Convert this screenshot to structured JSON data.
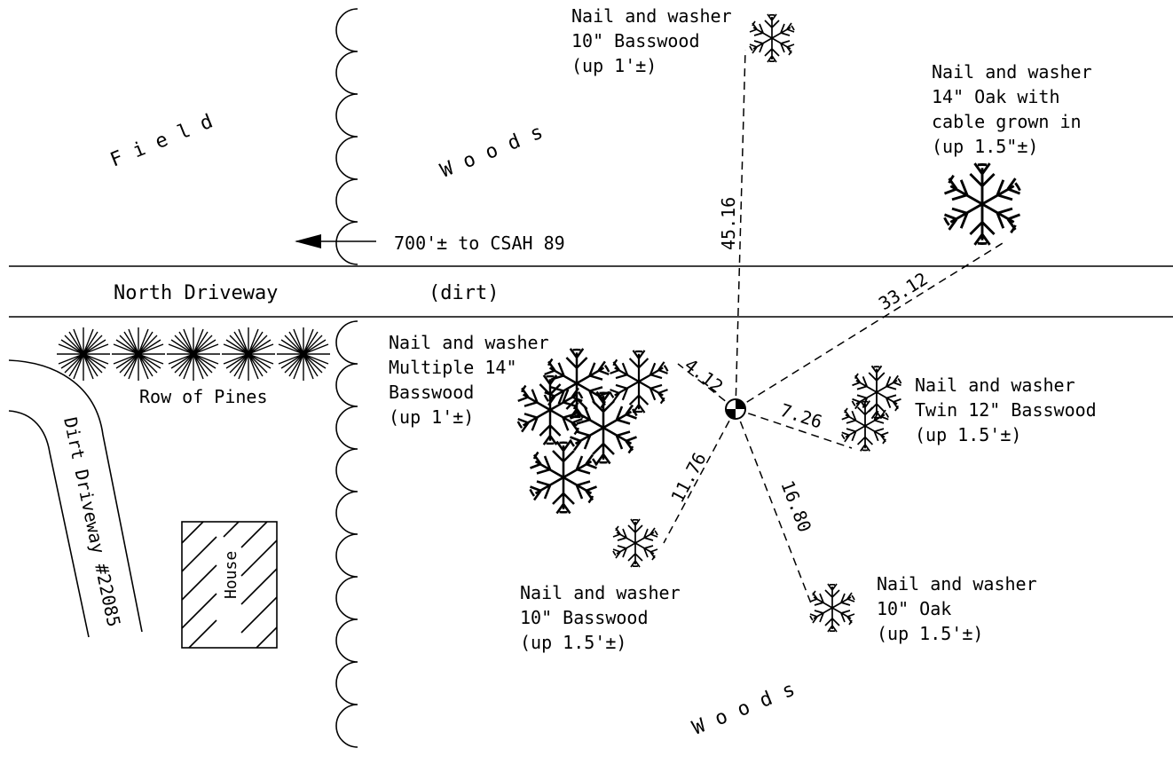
{
  "labels": {
    "field": "Field",
    "woods_top": "Woods",
    "woods_bottom": "Woods",
    "north_driveway": "North Driveway",
    "dirt": "(dirt)",
    "row_of_pines": "Row of Pines",
    "dirt_driveway": "Dirt Driveway #22085",
    "house": "House",
    "to_csah": "700'± to CSAH 89"
  },
  "witness_trees": [
    {
      "id": "n",
      "note": [
        "Nail and washer",
        "10\" Basswood",
        "(up 1'±)"
      ],
      "distance": "45.16"
    },
    {
      "id": "ne",
      "note": [
        "Nail and washer",
        "14\" Oak with",
        "cable grown in",
        "(up 1.5\"±)"
      ],
      "distance": "33.12"
    },
    {
      "id": "w",
      "note": [
        "Nail and washer",
        "Multiple 14\"",
        "Basswood",
        "(up 1'±)"
      ],
      "distance": "4.12"
    },
    {
      "id": "e",
      "note": [
        "Nail and washer",
        "Twin 12\" Basswood",
        "(up 1.5'±)"
      ],
      "distance": "7.26"
    },
    {
      "id": "sw",
      "note": [
        "Nail and washer",
        "10\" Basswood",
        "(up 1.5'±)"
      ],
      "distance": "11.76"
    },
    {
      "id": "se",
      "note": [
        "Nail and washer",
        "10\" Oak",
        "(up 1.5'±)"
      ],
      "distance": "16.80"
    }
  ]
}
